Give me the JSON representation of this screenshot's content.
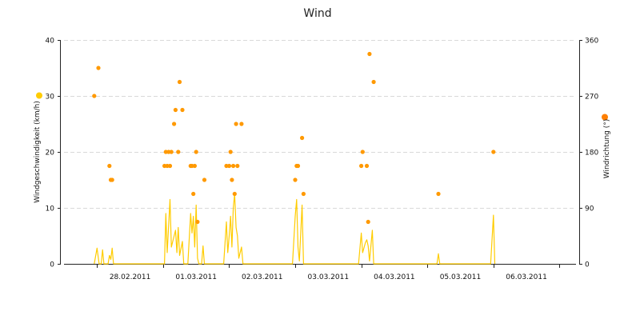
{
  "chart_data": {
    "type": "line+scatter",
    "title": "Wind",
    "grid": true,
    "x": {
      "type": "datetime",
      "range": [
        "2011-02-27T12:00",
        "2011-03-07T06:00"
      ],
      "ticks": [
        "2011-02-28",
        "2011-03-01",
        "2011-03-02",
        "2011-03-03",
        "2011-03-04",
        "2011-03-05",
        "2011-03-06"
      ],
      "tick_labels": [
        "28.02.2011",
        "01.03.2011",
        "02.03.2011",
        "03.03.2011",
        "04.03.2011",
        "05.03.2011",
        "06.03.2011"
      ]
    },
    "y_left": {
      "label": "Windgeschwindigkeit (km/h)",
      "range": [
        0,
        40
      ],
      "ticks": [
        0,
        10,
        20,
        30,
        40
      ],
      "color": "#ffcc00"
    },
    "y_right": {
      "label": "Windrichtung (°)",
      "range": [
        0,
        360
      ],
      "ticks": [
        0,
        90,
        180,
        270,
        360
      ],
      "color": "#ff9900"
    },
    "series": [
      {
        "kind": "line",
        "axis": "left",
        "color": "#ffcc00",
        "points": [
          [
            "2011-02-27T23:00",
            0
          ],
          [
            "2011-02-28T00:00",
            2.8
          ],
          [
            "2011-02-28T00:45",
            0
          ],
          [
            "2011-02-28T01:30",
            0
          ],
          [
            "2011-02-28T02:00",
            2.5
          ],
          [
            "2011-02-28T02:30",
            0
          ],
          [
            "2011-02-28T04:00",
            0
          ],
          [
            "2011-02-28T04:30",
            1.5
          ],
          [
            "2011-02-28T05:00",
            0.8
          ],
          [
            "2011-02-28T05:30",
            2.8
          ],
          [
            "2011-02-28T06:00",
            0
          ],
          [
            "2011-03-01T00:30",
            0
          ],
          [
            "2011-03-01T01:00",
            9.0
          ],
          [
            "2011-03-01T01:30",
            2.0
          ],
          [
            "2011-03-01T02:30",
            11.5
          ],
          [
            "2011-03-01T03:00",
            3.0
          ],
          [
            "2011-03-01T04:30",
            6.0
          ],
          [
            "2011-03-01T05:00",
            2.0
          ],
          [
            "2011-03-01T05:30",
            6.5
          ],
          [
            "2011-03-01T06:00",
            1.5
          ],
          [
            "2011-03-01T07:00",
            4.0
          ],
          [
            "2011-03-01T07:30",
            0
          ],
          [
            "2011-03-01T09:00",
            0
          ],
          [
            "2011-03-01T10:00",
            9.0
          ],
          [
            "2011-03-01T10:30",
            5.5
          ],
          [
            "2011-03-01T11:00",
            8.5
          ],
          [
            "2011-03-01T11:30",
            3.0
          ],
          [
            "2011-03-01T12:00",
            10.5
          ],
          [
            "2011-03-01T12:30",
            1.0
          ],
          [
            "2011-03-01T13:00",
            0
          ],
          [
            "2011-03-01T14:00",
            0
          ],
          [
            "2011-03-01T14:30",
            3.2
          ],
          [
            "2011-03-01T15:00",
            0
          ],
          [
            "2011-03-01T22:00",
            0
          ],
          [
            "2011-03-01T23:00",
            7.5
          ],
          [
            "2011-03-01T23:30",
            2.0
          ],
          [
            "2011-03-02T00:00",
            5.0
          ],
          [
            "2011-03-02T00:30",
            8.5
          ],
          [
            "2011-03-02T01:00",
            3.0
          ],
          [
            "2011-03-02T01:30",
            10.0
          ],
          [
            "2011-03-02T02:00",
            12.5
          ],
          [
            "2011-03-02T02:30",
            6.5
          ],
          [
            "2011-03-02T03:00",
            5.0
          ],
          [
            "2011-03-02T03:30",
            1.0
          ],
          [
            "2011-03-02T04:30",
            3.0
          ],
          [
            "2011-03-02T05:00",
            0
          ],
          [
            "2011-03-02T23:00",
            0
          ],
          [
            "2011-03-03T00:00",
            8.5
          ],
          [
            "2011-03-03T00:30",
            11.5
          ],
          [
            "2011-03-03T01:00",
            3.0
          ],
          [
            "2011-03-03T01:30",
            0.5
          ],
          [
            "2011-03-03T02:30",
            10.5
          ],
          [
            "2011-03-03T03:00",
            0
          ],
          [
            "2011-03-03T23:00",
            0
          ],
          [
            "2011-03-04T00:00",
            5.5
          ],
          [
            "2011-03-04T00:30",
            2.0
          ],
          [
            "2011-03-04T01:30",
            3.8
          ],
          [
            "2011-03-04T02:00",
            4.3
          ],
          [
            "2011-03-04T02:30",
            3.2
          ],
          [
            "2011-03-04T03:00",
            0.5
          ],
          [
            "2011-03-04T04:00",
            6.0
          ],
          [
            "2011-03-04T04:30",
            0
          ],
          [
            "2011-03-05T03:30",
            0
          ],
          [
            "2011-03-05T04:00",
            1.8
          ],
          [
            "2011-03-05T04:30",
            0
          ],
          [
            "2011-03-05T23:00",
            0
          ],
          [
            "2011-03-06T00:00",
            8.7
          ],
          [
            "2011-03-06T00:30",
            0
          ]
        ]
      },
      {
        "kind": "scatter",
        "axis": "right",
        "color": "#ff9900",
        "points": [
          [
            "2011-02-27T23:00",
            270
          ],
          [
            "2011-02-28T00:30",
            315
          ],
          [
            "2011-02-28T04:30",
            157.5
          ],
          [
            "2011-02-28T05:00",
            135
          ],
          [
            "2011-02-28T05:30",
            135
          ],
          [
            "2011-03-01T00:30",
            157.5
          ],
          [
            "2011-03-01T01:00",
            180
          ],
          [
            "2011-03-01T01:30",
            157.5
          ],
          [
            "2011-03-01T02:00",
            180
          ],
          [
            "2011-03-01T02:30",
            157.5
          ],
          [
            "2011-03-01T03:00",
            180
          ],
          [
            "2011-03-01T04:00",
            225
          ],
          [
            "2011-03-01T04:30",
            247.5
          ],
          [
            "2011-03-01T05:30",
            180
          ],
          [
            "2011-03-01T06:00",
            292.5
          ],
          [
            "2011-03-01T07:00",
            247.5
          ],
          [
            "2011-03-01T10:00",
            157.5
          ],
          [
            "2011-03-01T10:30",
            157.5
          ],
          [
            "2011-03-01T11:00",
            112.5
          ],
          [
            "2011-03-01T11:30",
            157.5
          ],
          [
            "2011-03-01T12:00",
            180
          ],
          [
            "2011-03-01T12:30",
            67.5
          ],
          [
            "2011-03-01T15:00",
            135
          ],
          [
            "2011-03-01T23:00",
            157.5
          ],
          [
            "2011-03-02T00:00",
            157.5
          ],
          [
            "2011-03-02T00:30",
            180
          ],
          [
            "2011-03-02T01:00",
            135
          ],
          [
            "2011-03-02T01:30",
            157.5
          ],
          [
            "2011-03-02T02:00",
            112.5
          ],
          [
            "2011-03-02T02:30",
            225
          ],
          [
            "2011-03-02T03:00",
            157.5
          ],
          [
            "2011-03-02T04:30",
            225
          ],
          [
            "2011-03-03T00:00",
            135
          ],
          [
            "2011-03-03T00:30",
            157.5
          ],
          [
            "2011-03-03T01:00",
            157.5
          ],
          [
            "2011-03-03T02:30",
            202.5
          ],
          [
            "2011-03-03T03:00",
            112.5
          ],
          [
            "2011-03-04T00:00",
            157.5
          ],
          [
            "2011-03-04T00:30",
            180
          ],
          [
            "2011-03-04T02:00",
            157.5
          ],
          [
            "2011-03-04T02:30",
            67.5
          ],
          [
            "2011-03-04T03:00",
            337.5
          ],
          [
            "2011-03-04T04:30",
            292.5
          ],
          [
            "2011-03-05T04:00",
            112.5
          ],
          [
            "2011-03-06T00:00",
            180
          ]
        ]
      }
    ]
  }
}
